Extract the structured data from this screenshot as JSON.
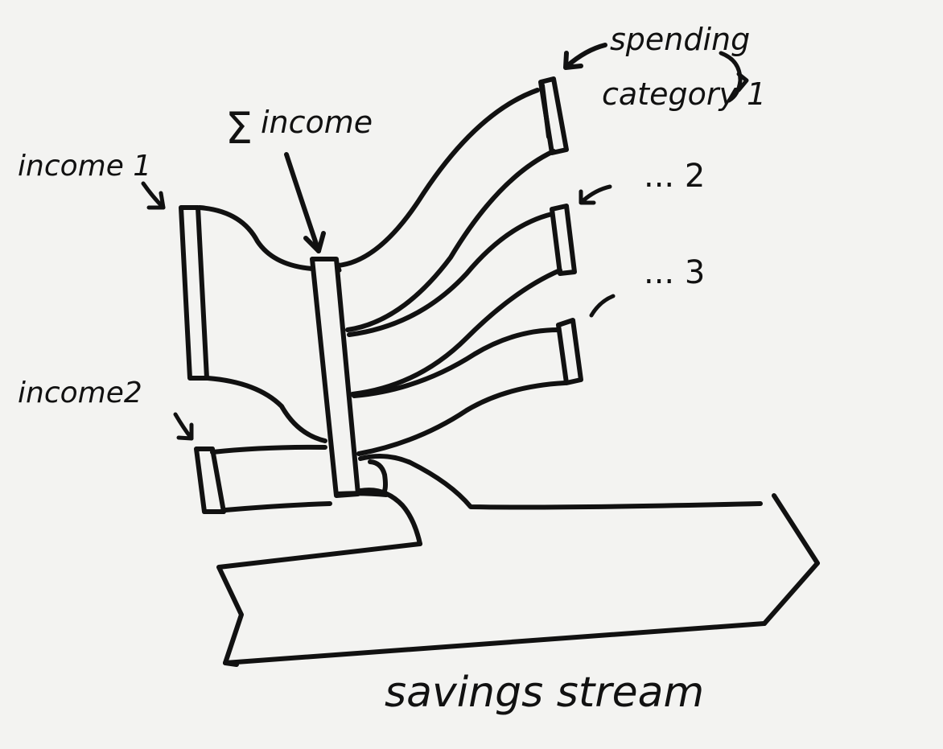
{
  "labels": {
    "income1": "income 1",
    "income2": "income2",
    "sum_symbol": "Σ",
    "sum_income": "income",
    "spending_line1": "spending",
    "spending_line2": "category 1",
    "cat2": "... 2",
    "cat3": "... 3",
    "savings": "savings stream"
  }
}
